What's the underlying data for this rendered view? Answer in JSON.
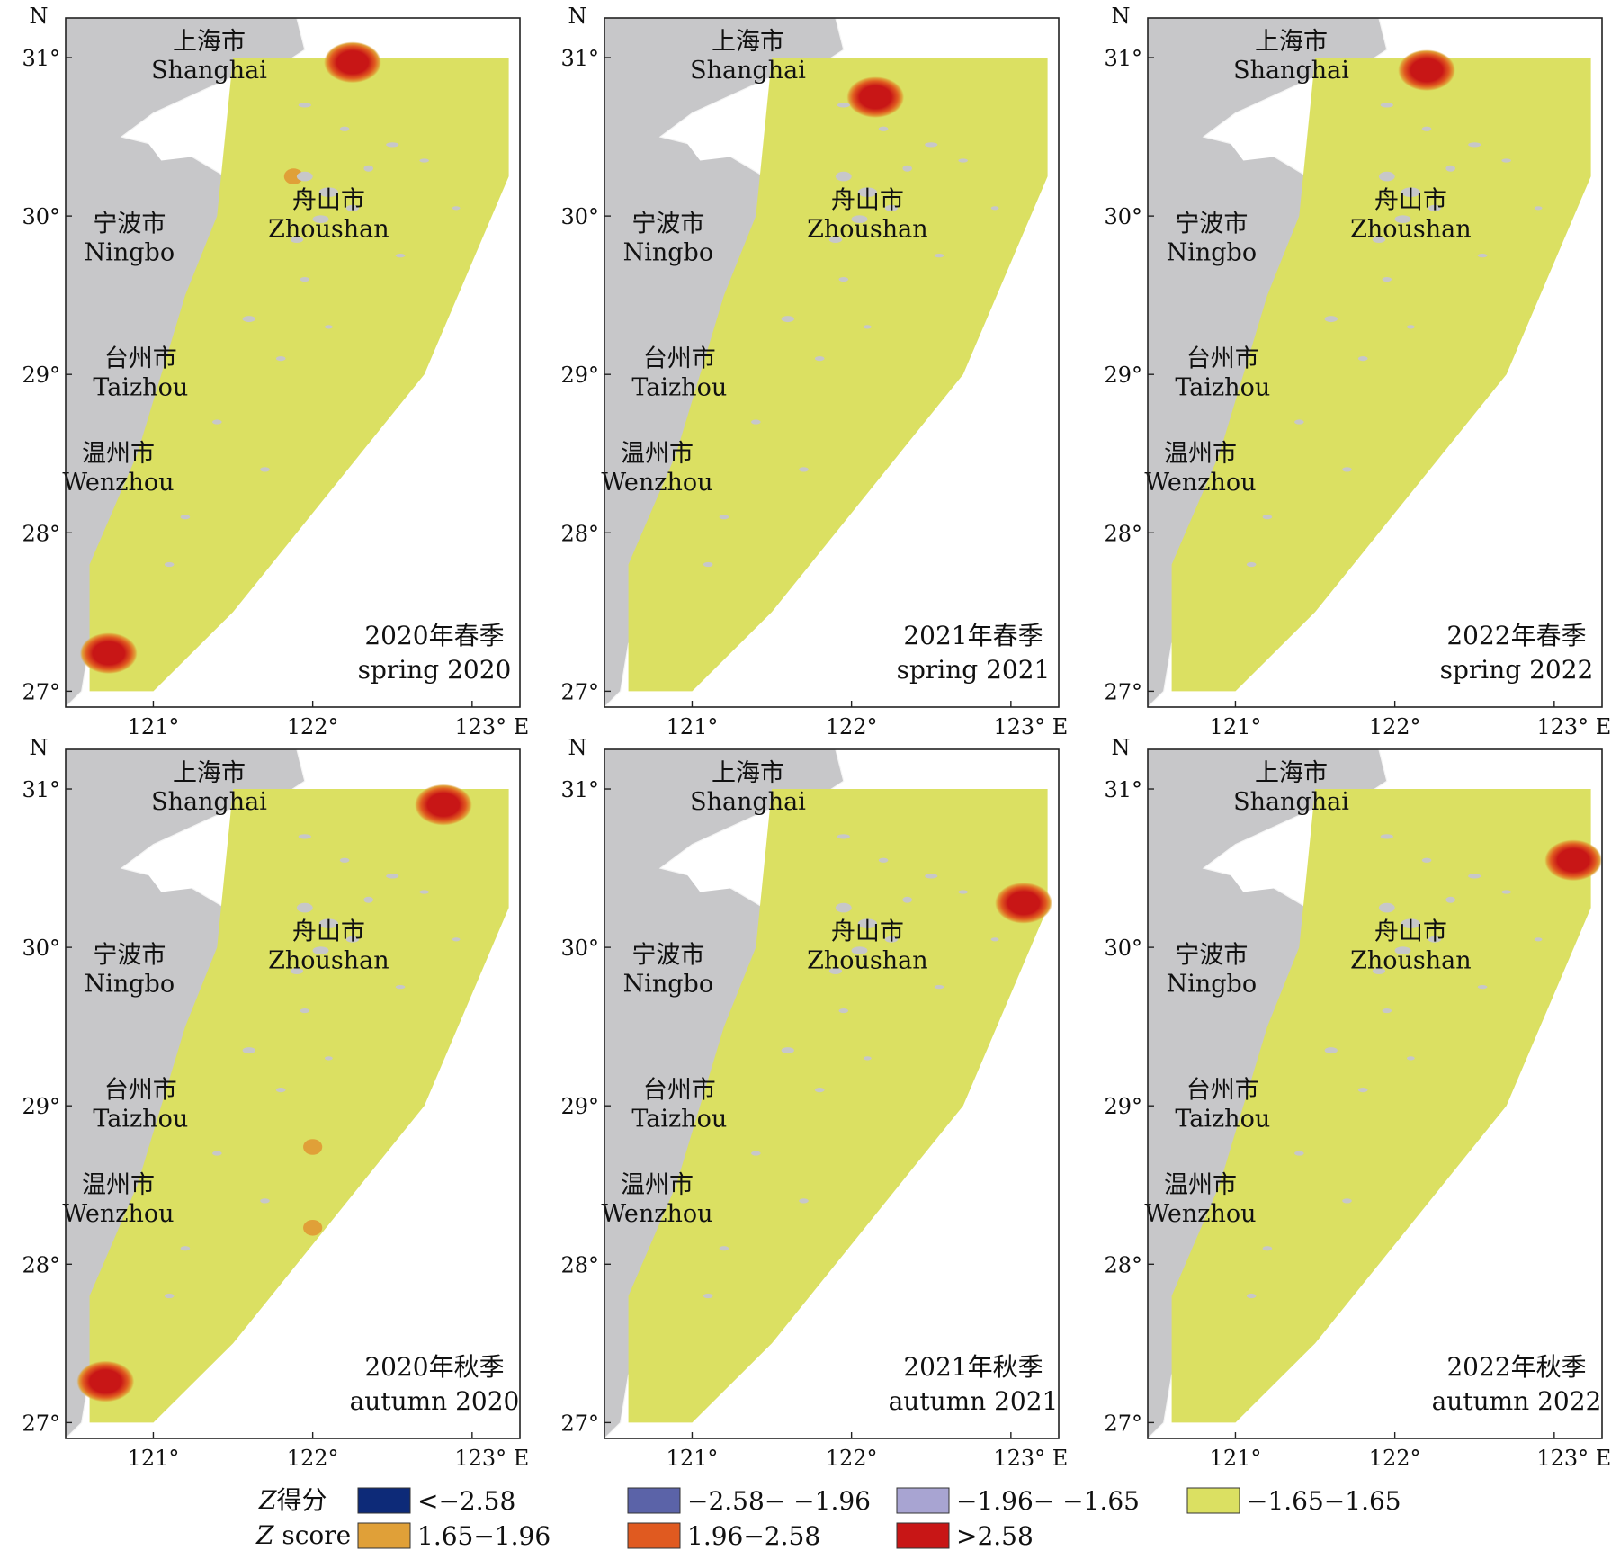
{
  "panels": [
    {
      "season_zh": "2020年春季",
      "season_en": "spring 2020",
      "cities": {
        "shanghai_zh": "上海市",
        "shanghai_en": "Shanghai",
        "zhoushan_zh": "舟山市",
        "zhoushan_en": "Zhoushan",
        "ningbo_zh": "宁波市",
        "ningbo_en": "Ningbo",
        "taizhou_zh": "台州市",
        "taizhou_en": "Taizhou",
        "wenzhou_zh": "温州市",
        "wenzhou_en": "Wenzhou"
      },
      "hotspots": [
        {
          "lon": 122.25,
          "lat": 30.97,
          "class": "gt_2_58"
        },
        {
          "lon": 121.88,
          "lat": 30.25,
          "class": "1_65_1_96"
        },
        {
          "lon": 120.72,
          "lat": 27.24,
          "class": "gt_2_58"
        }
      ]
    },
    {
      "season_zh": "2021年春季",
      "season_en": "spring 2021",
      "cities": {
        "shanghai_zh": "上海市",
        "shanghai_en": "Shanghai",
        "zhoushan_zh": "舟山市",
        "zhoushan_en": "Zhoushan",
        "ningbo_zh": "宁波市",
        "ningbo_en": "Ningbo",
        "taizhou_zh": "台州市",
        "taizhou_en": "Taizhou",
        "wenzhou_zh": "温州市",
        "wenzhou_en": "Wenzhou"
      },
      "hotspots": [
        {
          "lon": 122.15,
          "lat": 30.75,
          "class": "gt_2_58"
        }
      ]
    },
    {
      "season_zh": "2022年春季",
      "season_en": "spring 2022",
      "cities": {
        "shanghai_zh": "上海市",
        "shanghai_en": "Shanghai",
        "zhoushan_zh": "舟山市",
        "zhoushan_en": "Zhoushan",
        "ningbo_zh": "宁波市",
        "ningbo_en": "Ningbo",
        "taizhou_zh": "台州市",
        "taizhou_en": "Taizhou",
        "wenzhou_zh": "温州市",
        "wenzhou_en": "Wenzhou"
      },
      "hotspots": [
        {
          "lon": 122.2,
          "lat": 30.92,
          "class": "gt_2_58"
        }
      ]
    },
    {
      "season_zh": "2020年秋季",
      "season_en": "autumn 2020",
      "cities": {
        "shanghai_zh": "上海市",
        "shanghai_en": "Shanghai",
        "zhoushan_zh": "舟山市",
        "zhoushan_en": "Zhoushan",
        "ningbo_zh": "宁波市",
        "ningbo_en": "Ningbo",
        "taizhou_zh": "台州市",
        "taizhou_en": "Taizhou",
        "wenzhou_zh": "温州市",
        "wenzhou_en": "Wenzhou"
      },
      "hotspots": [
        {
          "lon": 122.82,
          "lat": 30.9,
          "class": "gt_2_58"
        },
        {
          "lon": 122.0,
          "lat": 28.74,
          "class": "1_65_1_96"
        },
        {
          "lon": 122.0,
          "lat": 28.23,
          "class": "1_65_1_96"
        },
        {
          "lon": 120.7,
          "lat": 27.26,
          "class": "gt_2_58"
        }
      ]
    },
    {
      "season_zh": "2021年秋季",
      "season_en": "autumn 2021",
      "cities": {
        "shanghai_zh": "上海市",
        "shanghai_en": "Shanghai",
        "zhoushan_zh": "舟山市",
        "zhoushan_en": "Zhoushan",
        "ningbo_zh": "宁波市",
        "ningbo_en": "Ningbo",
        "taizhou_zh": "台州市",
        "taizhou_en": "Taizhou",
        "wenzhou_zh": "温州市",
        "wenzhou_en": "Wenzhou"
      },
      "hotspots": [
        {
          "lon": 123.08,
          "lat": 30.28,
          "class": "gt_2_58"
        }
      ]
    },
    {
      "season_zh": "2022年秋季",
      "season_en": "autumn 2022",
      "cities": {
        "shanghai_zh": "上海市",
        "shanghai_en": "Shanghai",
        "zhoushan_zh": "舟山市",
        "zhoushan_en": "Zhoushan",
        "ningbo_zh": "宁波市",
        "ningbo_en": "Ningbo",
        "taizhou_zh": "台州市",
        "taizhou_en": "Taizhou",
        "wenzhou_zh": "温州市",
        "wenzhou_en": "Wenzhou"
      },
      "hotspots": [
        {
          "lon": 123.12,
          "lat": 30.55,
          "class": "gt_2_58"
        }
      ]
    }
  ],
  "axes": {
    "north_label": "N",
    "east_label": "123° E",
    "lat_ticks": [
      "31°",
      "30°",
      "29°",
      "28°",
      "27°"
    ],
    "lon_ticks": [
      "121°",
      "122°"
    ],
    "lat_range": [
      26.9,
      31.25
    ],
    "lon_range": [
      120.45,
      123.3
    ]
  },
  "legend": {
    "title_zh": "Z得分",
    "title_en_italic": "Z",
    "title_en_rest": " score",
    "items": [
      {
        "key": "lt_neg_2_58",
        "label": "<−2.58",
        "color": "#0d2a78"
      },
      {
        "key": "neg_2_58_neg_1_96",
        "label": "−2.58− −1.96",
        "color": "#5b63a8"
      },
      {
        "key": "neg_1_96_neg_1_65",
        "label": "−1.96− −1.65",
        "color": "#a8a4d2"
      },
      {
        "key": "neg_1_65_1_65",
        "label": "−1.65−1.65",
        "color": "#dbe062"
      },
      {
        "key": "1_65_1_96",
        "label": "1.65−1.96",
        "color": "#e0a038"
      },
      {
        "key": "1_96_2_58",
        "label": "1.96−2.58",
        "color": "#e05a20"
      },
      {
        "key": "gt_2_58",
        "label": ">2.58",
        "color": "#c81616"
      }
    ]
  },
  "colors": {
    "land": "#c7c7c9",
    "land_border": "#f4f4f4",
    "sea_background": "#ffffff",
    "study_area": "#dbe062",
    "frame": "#222222"
  }
}
